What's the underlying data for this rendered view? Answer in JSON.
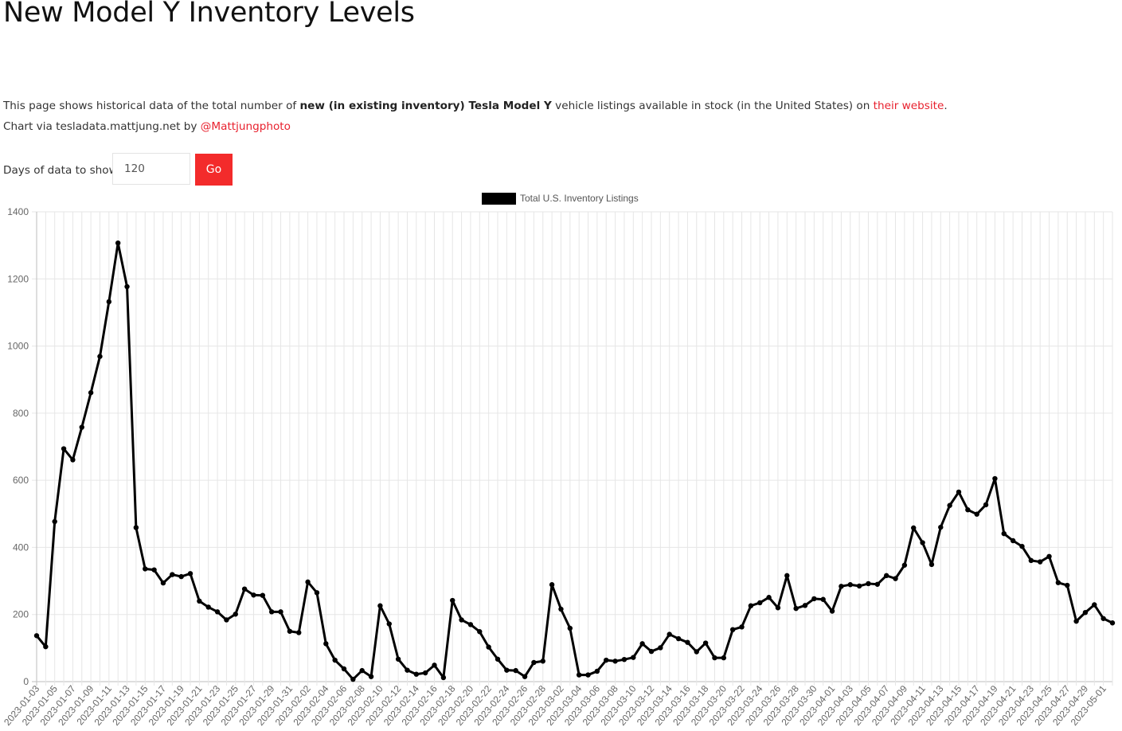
{
  "page": {
    "title": "New Model Y Inventory Levels",
    "desc_prefix": "This page shows historical data of the total number of ",
    "desc_bold": "new (in existing inventory) Tesla Model Y",
    "desc_mid": " vehicle listings available in stock (in the United States) on ",
    "desc_link": "their website",
    "desc_end": ".",
    "credit_prefix": "Chart via tesladata.mattjung.net by ",
    "credit_link": "@Mattjungphoto"
  },
  "controls": {
    "days_label": "Days of data to show",
    "days_value": "120",
    "go_label": "Go"
  },
  "colors": {
    "accent": "#f32b2b",
    "link": "#e8212e",
    "line": "#000000",
    "grid": "#e6e6e6"
  },
  "chart_data": {
    "type": "line",
    "legend": "Total U.S. Inventory Listings",
    "legend_position": "top",
    "grid": true,
    "ylim": [
      0,
      1400
    ],
    "yticks": [
      0,
      200,
      400,
      600,
      800,
      1000,
      1200,
      1400
    ],
    "x": [
      "2023-01-03",
      "2023-01-04",
      "2023-01-05",
      "2023-01-06",
      "2023-01-07",
      "2023-01-08",
      "2023-01-09",
      "2023-01-10",
      "2023-01-11",
      "2023-01-12",
      "2023-01-13",
      "2023-01-14",
      "2023-01-15",
      "2023-01-16",
      "2023-01-17",
      "2023-01-18",
      "2023-01-19",
      "2023-01-20",
      "2023-01-21",
      "2023-01-22",
      "2023-01-23",
      "2023-01-24",
      "2023-01-25",
      "2023-01-26",
      "2023-01-27",
      "2023-01-28",
      "2023-01-29",
      "2023-01-30",
      "2023-01-31",
      "2023-02-01",
      "2023-02-02",
      "2023-02-03",
      "2023-02-04",
      "2023-02-05",
      "2023-02-06",
      "2023-02-07",
      "2023-02-08",
      "2023-02-09",
      "2023-02-10",
      "2023-02-11",
      "2023-02-12",
      "2023-02-13",
      "2023-02-14",
      "2023-02-15",
      "2023-02-16",
      "2023-02-17",
      "2023-02-18",
      "2023-02-19",
      "2023-02-20",
      "2023-02-21",
      "2023-02-22",
      "2023-02-23",
      "2023-02-24",
      "2023-02-25",
      "2023-02-26",
      "2023-02-27",
      "2023-02-28",
      "2023-03-01",
      "2023-03-02",
      "2023-03-03",
      "2023-03-04",
      "2023-03-05",
      "2023-03-06",
      "2023-03-07",
      "2023-03-08",
      "2023-03-09",
      "2023-03-10",
      "2023-03-11",
      "2023-03-12",
      "2023-03-13",
      "2023-03-14",
      "2023-03-15",
      "2023-03-16",
      "2023-03-17",
      "2023-03-18",
      "2023-03-19",
      "2023-03-20",
      "2023-03-21",
      "2023-03-22",
      "2023-03-23",
      "2023-03-24",
      "2023-03-25",
      "2023-03-26",
      "2023-03-27",
      "2023-03-28",
      "2023-03-29",
      "2023-03-30",
      "2023-03-31",
      "2023-04-01",
      "2023-04-02",
      "2023-04-03",
      "2023-04-04",
      "2023-04-05",
      "2023-04-06",
      "2023-04-07",
      "2023-04-08",
      "2023-04-09",
      "2023-04-10",
      "2023-04-11",
      "2023-04-12",
      "2023-04-13",
      "2023-04-14",
      "2023-04-15",
      "2023-04-16",
      "2023-04-17",
      "2023-04-18",
      "2023-04-19",
      "2023-04-20",
      "2023-04-21",
      "2023-04-22",
      "2023-04-23",
      "2023-04-24",
      "2023-04-25",
      "2023-04-26",
      "2023-04-27",
      "2023-04-28",
      "2023-04-29",
      "2023-04-30",
      "2023-05-01",
      "2023-05-02"
    ],
    "tick_labels": [
      "2023-01-03",
      "2023-01-05",
      "2023-01-07",
      "2023-01-09",
      "2023-01-11",
      "2023-01-13",
      "2023-01-15",
      "2023-01-17",
      "2023-01-19",
      "2023-01-21",
      "2023-01-23",
      "2023-01-25",
      "2023-01-27",
      "2023-01-29",
      "2023-01-31",
      "2023-02-02",
      "2023-02-04",
      "2023-02-06",
      "2023-02-08",
      "2023-02-10",
      "2023-02-12",
      "2023-02-14",
      "2023-02-16",
      "2023-02-18",
      "2023-02-20",
      "2023-02-22",
      "2023-02-24",
      "2023-02-26",
      "2023-02-28",
      "2023-03-02",
      "2023-03-04",
      "2023-03-06",
      "2023-03-08",
      "2023-03-10",
      "2023-03-12",
      "2023-03-14",
      "2023-03-16",
      "2023-03-18",
      "2023-03-20",
      "2023-03-22",
      "2023-03-24",
      "2023-03-26",
      "2023-03-28",
      "2023-03-30",
      "2023-04-01",
      "2023-04-03",
      "2023-04-05",
      "2023-04-07",
      "2023-04-09",
      "2023-04-11",
      "2023-04-13",
      "2023-04-15",
      "2023-04-17",
      "2023-04-19",
      "2023-04-21",
      "2023-04-23",
      "2023-04-25",
      "2023-04-27",
      "2023-04-29",
      "2023-05-01"
    ],
    "values": [
      137,
      104,
      477,
      694,
      661,
      758,
      861,
      969,
      1132,
      1307,
      1177,
      459,
      336,
      333,
      294,
      319,
      313,
      322,
      240,
      222,
      208,
      184,
      201,
      276,
      258,
      257,
      208,
      208,
      150,
      146,
      297,
      265,
      113,
      64,
      38,
      7,
      33,
      15,
      226,
      172,
      67,
      34,
      22,
      26,
      49,
      12,
      242,
      184,
      170,
      149,
      103,
      67,
      34,
      33,
      15,
      57,
      61,
      289,
      216,
      159,
      20,
      20,
      31,
      64,
      61,
      66,
      72,
      113,
      90,
      101,
      141,
      128,
      117,
      89,
      115,
      71,
      71,
      155,
      163,
      226,
      235,
      251,
      220,
      316,
      218,
      227,
      247,
      245,
      210,
      284,
      289,
      285,
      292,
      290,
      316,
      307,
      347,
      458,
      414,
      349,
      460,
      525,
      565,
      512,
      499,
      527,
      605,
      441,
      420,
      403,
      361,
      357,
      373,
      295,
      287,
      180,
      206,
      229,
      188,
      175
    ]
  }
}
